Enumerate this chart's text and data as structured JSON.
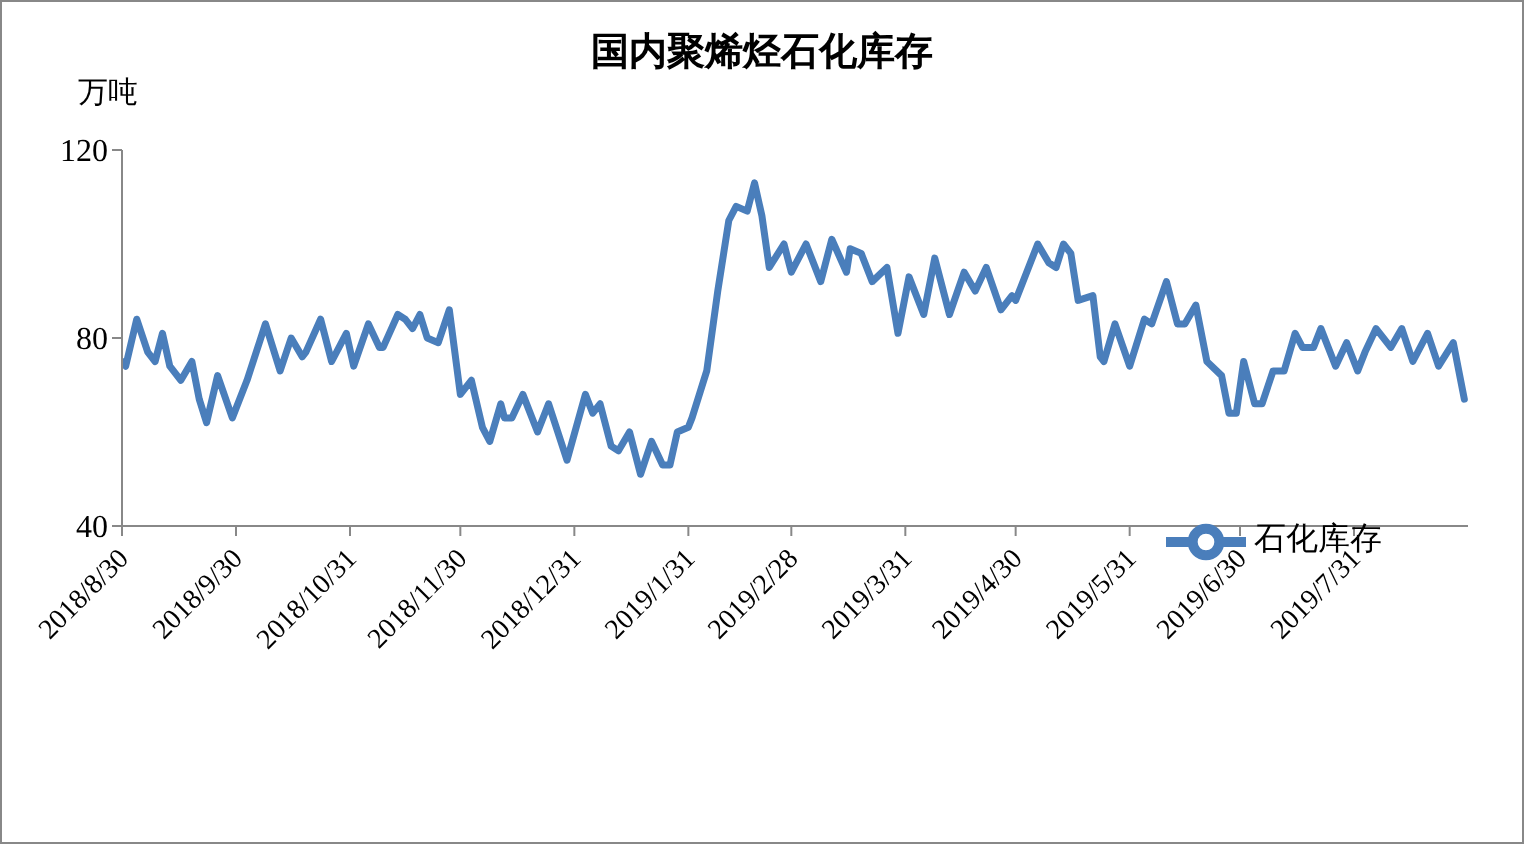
{
  "chart_data": {
    "type": "line",
    "title": "国内聚烯烃石化库存",
    "ylabel": "万吨",
    "x": [
      "2018-08-30",
      "2018-08-31",
      "2018-09-03",
      "2018-09-06",
      "2018-09-08",
      "2018-09-10",
      "2018-09-12",
      "2018-09-15",
      "2018-09-18",
      "2018-09-20",
      "2018-09-22",
      "2018-09-25",
      "2018-09-29",
      "2018-10-03",
      "2018-10-08",
      "2018-10-12",
      "2018-10-15",
      "2018-10-18",
      "2018-10-19",
      "2018-10-23",
      "2018-10-26",
      "2018-10-30",
      "2018-11-01",
      "2018-11-05",
      "2018-11-08",
      "2018-11-09",
      "2018-11-13",
      "2018-11-15",
      "2018-11-17",
      "2018-11-19",
      "2018-11-21",
      "2018-11-24",
      "2018-11-27",
      "2018-11-30",
      "2018-12-03",
      "2018-12-06",
      "2018-12-08",
      "2018-12-11",
      "2018-12-12",
      "2018-12-14",
      "2018-12-17",
      "2018-12-21",
      "2018-12-24",
      "2018-12-29",
      "2019-01-03",
      "2019-01-05",
      "2019-01-07",
      "2019-01-10",
      "2019-01-12",
      "2019-01-15",
      "2019-01-18",
      "2019-01-21",
      "2019-01-24",
      "2019-01-26",
      "2019-01-28",
      "2019-01-31",
      "2019-02-01",
      "2019-02-05",
      "2019-02-08",
      "2019-02-11",
      "2019-02-13",
      "2019-02-16",
      "2019-02-18",
      "2019-02-20",
      "2019-02-22",
      "2019-02-26",
      "2019-02-28",
      "2019-03-04",
      "2019-03-08",
      "2019-03-11",
      "2019-03-15",
      "2019-03-16",
      "2019-03-19",
      "2019-03-22",
      "2019-03-26",
      "2019-03-29",
      "2019-04-01",
      "2019-04-05",
      "2019-04-08",
      "2019-04-12",
      "2019-04-16",
      "2019-04-19",
      "2019-04-22",
      "2019-04-26",
      "2019-04-29",
      "2019-04-30",
      "2019-05-06",
      "2019-05-09",
      "2019-05-11",
      "2019-05-13",
      "2019-05-15",
      "2019-05-17",
      "2019-05-21",
      "2019-05-23",
      "2019-05-24",
      "2019-05-27",
      "2019-05-31",
      "2019-06-04",
      "2019-06-06",
      "2019-06-10",
      "2019-06-13",
      "2019-06-15",
      "2019-06-18",
      "2019-06-21",
      "2019-06-25",
      "2019-06-27",
      "2019-06-29",
      "2019-07-01",
      "2019-07-04",
      "2019-07-06",
      "2019-07-09",
      "2019-07-12",
      "2019-07-15",
      "2019-07-17",
      "2019-07-20",
      "2019-07-22",
      "2019-07-26",
      "2019-07-29",
      "2019-08-01",
      "2019-08-03",
      "2019-08-06",
      "2019-08-10",
      "2019-08-13",
      "2019-08-16",
      "2019-08-20",
      "2019-08-23",
      "2019-08-27",
      "2019-08-30"
    ],
    "series": [
      {
        "name": "石化库存",
        "color": "#4a7ebb",
        "values": [
          75,
          74,
          84,
          77,
          75,
          81,
          74,
          71,
          75,
          67,
          62,
          72,
          63,
          71,
          83,
          73,
          80,
          76,
          77,
          84,
          75,
          81,
          74,
          83,
          78,
          78,
          85,
          84,
          82,
          85,
          80,
          79,
          86,
          68,
          71,
          61,
          58,
          66,
          63,
          63,
          68,
          60,
          66,
          54,
          68,
          64,
          66,
          57,
          56,
          60,
          51,
          58,
          53,
          53,
          60,
          61,
          63,
          73,
          90,
          105,
          108,
          107,
          113,
          106,
          95,
          100,
          94,
          100,
          92,
          101,
          94,
          99,
          98,
          92,
          95,
          81,
          93,
          85,
          97,
          85,
          94,
          90,
          95,
          86,
          89,
          88,
          100,
          96,
          95,
          100,
          98,
          88,
          89,
          76,
          75,
          83,
          74,
          84,
          83,
          92,
          83,
          83,
          87,
          75,
          72,
          64,
          64,
          75,
          66,
          66,
          73,
          73,
          81,
          78,
          78,
          82,
          74,
          79,
          73,
          77,
          82,
          78,
          82,
          75,
          81,
          74,
          79,
          67
        ]
      }
    ],
    "xlim": [
      "2018-08-30",
      "2019-08-31"
    ],
    "xticks": [
      {
        "value": "2018-08-30",
        "label": "2018/8/30"
      },
      {
        "value": "2018-09-30",
        "label": "2018/9/30"
      },
      {
        "value": "2018-10-31",
        "label": "2018/10/31"
      },
      {
        "value": "2018-11-30",
        "label": "2018/11/30"
      },
      {
        "value": "2018-12-31",
        "label": "2018/12/31"
      },
      {
        "value": "2019-01-31",
        "label": "2019/1/31"
      },
      {
        "value": "2019-02-28",
        "label": "2019/2/28"
      },
      {
        "value": "2019-03-31",
        "label": "2019/3/31"
      },
      {
        "value": "2019-04-30",
        "label": "2019/4/30"
      },
      {
        "value": "2019-05-31",
        "label": "2019/5/31"
      },
      {
        "value": "2019-06-30",
        "label": "2019/6/30"
      },
      {
        "value": "2019-07-31",
        "label": "2019/7/31"
      }
    ],
    "ylim": [
      40,
      120
    ],
    "yticks": [
      40,
      80,
      120
    ],
    "grid": false,
    "legend": "bottom right",
    "marker": "none",
    "line_style": "solid"
  }
}
